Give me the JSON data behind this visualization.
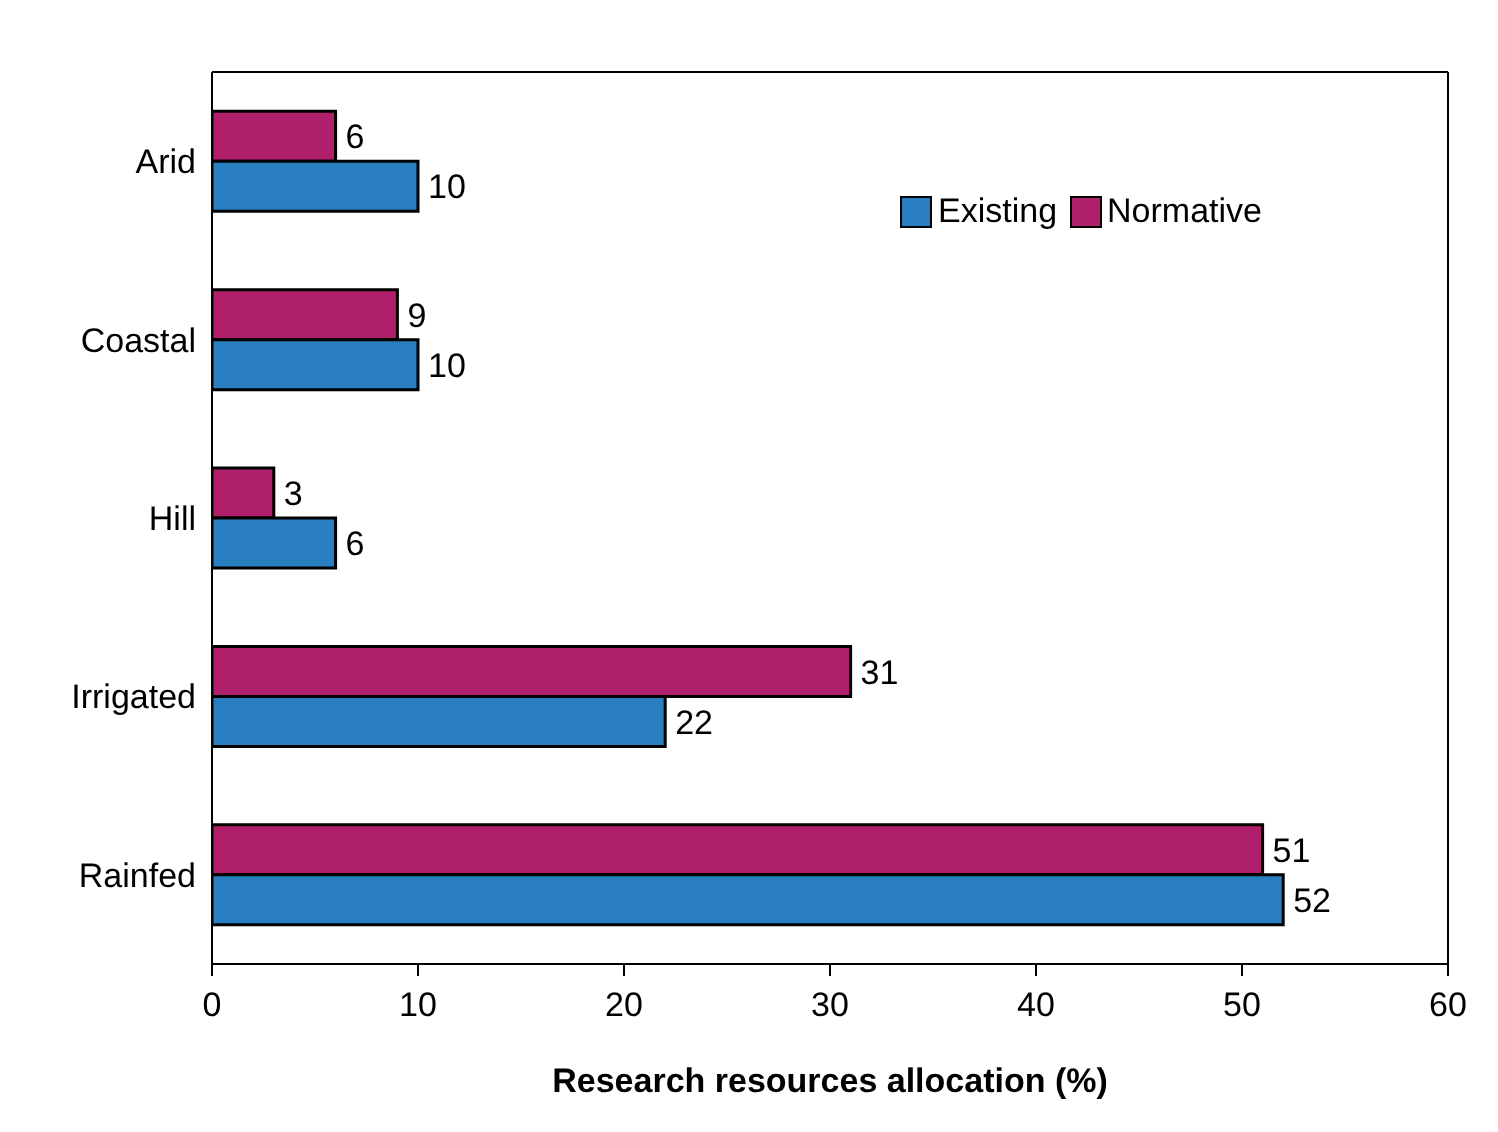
{
  "chart_data": {
    "type": "bar",
    "orientation": "horizontal",
    "xlabel": "Research resources allocation (%)",
    "categories": [
      "Arid",
      "Coastal",
      "Hill",
      "Irrigated",
      "Rainfed"
    ],
    "series": [
      {
        "name": "Existing",
        "color": "#2a7fc1",
        "values": [
          10,
          10,
          6,
          22,
          52
        ]
      },
      {
        "name": "Normative",
        "color": "#b0206a",
        "values": [
          6,
          9,
          3,
          31,
          51
        ]
      }
    ],
    "xlim": [
      0,
      60
    ],
    "xticks": [
      0,
      10,
      20,
      30,
      40,
      50,
      60
    ],
    "data_labels": true,
    "legend": "top right",
    "grid": false
  }
}
